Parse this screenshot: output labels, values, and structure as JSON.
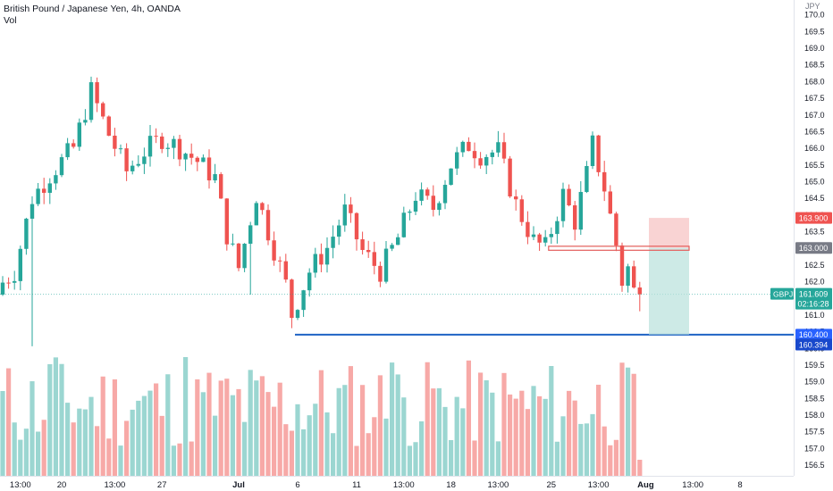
{
  "legend": {
    "symbol_line": "British Pound / Japanese Yen, 4h, OANDA",
    "volume_label": "Vol"
  },
  "chart_data": {
    "type": "candlestick",
    "symbol": "GBPJPY",
    "title": "British Pound / Japanese Yen, 4h, OANDA",
    "currency_label": "JPY",
    "ylim": [
      156.3,
      170.3
    ],
    "y_ticks": [
      156.5,
      157.0,
      157.5,
      158.0,
      158.5,
      159.0,
      159.5,
      160.0,
      160.5,
      161.0,
      161.5,
      162.0,
      162.5,
      163.0,
      163.5,
      164.0,
      164.5,
      165.0,
      165.5,
      166.0,
      166.5,
      167.0,
      167.5,
      168.0,
      168.5,
      169.0,
      169.5,
      170.0
    ],
    "x_ticks": [
      "13:00",
      "20",
      "13:00",
      "27",
      "Jul",
      "6",
      "11",
      "13:00",
      "18",
      "13:00",
      "25",
      "13:00",
      "Aug",
      "13:00",
      "8"
    ],
    "x_tick_index": [
      3,
      10,
      19,
      27,
      40,
      50,
      60,
      68,
      76,
      84,
      93,
      101,
      109,
      117,
      125
    ],
    "trend_path": [
      [
        0,
        161.8
      ],
      [
        3,
        162.3
      ],
      [
        6,
        164.5
      ],
      [
        9,
        165.2
      ],
      [
        13,
        166.0
      ],
      [
        16,
        167.7
      ],
      [
        19,
        166.4
      ],
      [
        22,
        165.3
      ],
      [
        25,
        165.9
      ],
      [
        28,
        166.3
      ],
      [
        31,
        166.0
      ],
      [
        34,
        165.6
      ],
      [
        37,
        165.1
      ],
      [
        39,
        163.4
      ],
      [
        41,
        162.4
      ],
      [
        44,
        164.6
      ],
      [
        46,
        163.5
      ],
      [
        49,
        161.9
      ],
      [
        50,
        161.0
      ],
      [
        53,
        162.3
      ],
      [
        56,
        163.0
      ],
      [
        59,
        164.1
      ],
      [
        62,
        162.9
      ],
      [
        65,
        162.3
      ],
      [
        68,
        163.3
      ],
      [
        71,
        164.6
      ],
      [
        74,
        164.2
      ],
      [
        77,
        165.5
      ],
      [
        80,
        166.1
      ],
      [
        82,
        165.8
      ],
      [
        85,
        165.9
      ],
      [
        88,
        164.3
      ],
      [
        91,
        163.2
      ],
      [
        93,
        163.0
      ],
      [
        96,
        164.6
      ],
      [
        98,
        163.8
      ],
      [
        100,
        165.2
      ],
      [
        101,
        166.1
      ],
      [
        103,
        164.8
      ],
      [
        105,
        163.1
      ],
      [
        106,
        162.0
      ],
      [
        107,
        162.4
      ],
      [
        108,
        161.7
      ]
    ],
    "volume_peaks": [
      {
        "index": 8,
        "tag": "high"
      },
      {
        "index": 9,
        "tag": "high"
      },
      {
        "index": 31,
        "tag": "high"
      },
      {
        "index": 66,
        "tag": "high"
      },
      {
        "index": 72,
        "tag": "high"
      }
    ],
    "price_labels": [
      {
        "value": "163.900",
        "price": 163.9,
        "color": "#ef5350"
      },
      {
        "value": "163.000",
        "price": 163.0,
        "color": "#787b86"
      },
      {
        "value": "161.609",
        "price": 161.609,
        "color": "#26a69a",
        "symbol": "GBPJPY",
        "countdown": "02:16:28"
      },
      {
        "value": "160.400",
        "price": 160.4,
        "color": "#2962ff"
      },
      {
        "value": "160.394",
        "price": 160.394,
        "color": "#1848cc"
      }
    ],
    "position": {
      "entry": 163.0,
      "stop": 163.9,
      "target": 160.4
    },
    "support_level": 160.4,
    "colors": {
      "up": "#26a69a",
      "down": "#ef5350",
      "vol_up": "#9bd6d1",
      "vol_down": "#f7a9a7",
      "level": "#1e63c4"
    }
  }
}
